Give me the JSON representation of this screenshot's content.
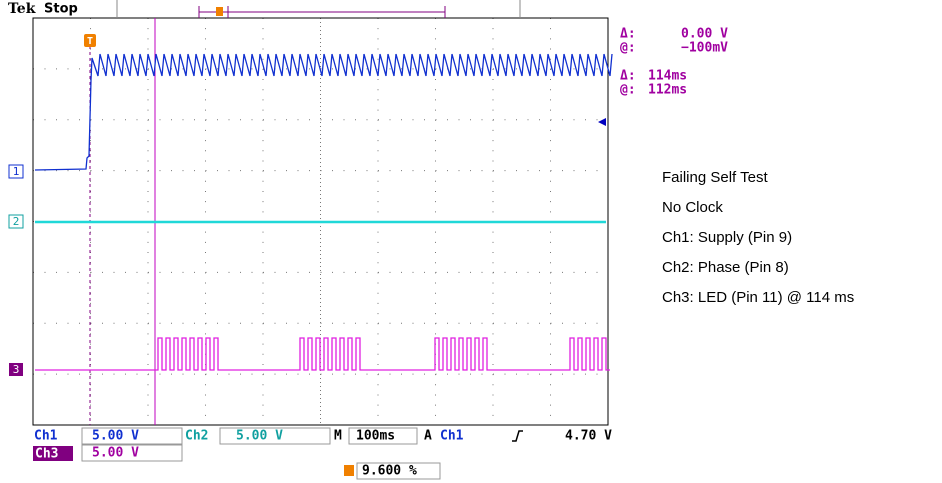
{
  "header": {
    "brand": "Tek",
    "state": "Stop"
  },
  "readouts": {
    "delta_v_label": "Δ:",
    "delta_v": "0.00 V",
    "at_v_label": "@:",
    "at_v": "−100mV",
    "delta_t_label": "Δ:",
    "delta_t": "114ms",
    "at_t_label": "@:",
    "at_t": "112ms"
  },
  "channel_markers": [
    "1",
    "2",
    "3"
  ],
  "trigger_marker": "T",
  "annotation": [
    "Failing Self Test",
    "No Clock",
    "Ch1: Supply (Pin 9)",
    "Ch2: Phase (Pin 8)",
    "Ch3: LED (Pin 11) @ 114 ms"
  ],
  "footer": {
    "ch1": "Ch1",
    "ch1_scale": "5.00 V",
    "ch2": "Ch2",
    "ch2_scale": "5.00 V",
    "m": "M",
    "timebase": "100ms",
    "a": "A",
    "trig_source": "Ch1",
    "trig_level": "4.70 V",
    "ch3": "Ch3",
    "ch3_scale": "5.00 V",
    "trig_pos": "9.600 %"
  }
}
